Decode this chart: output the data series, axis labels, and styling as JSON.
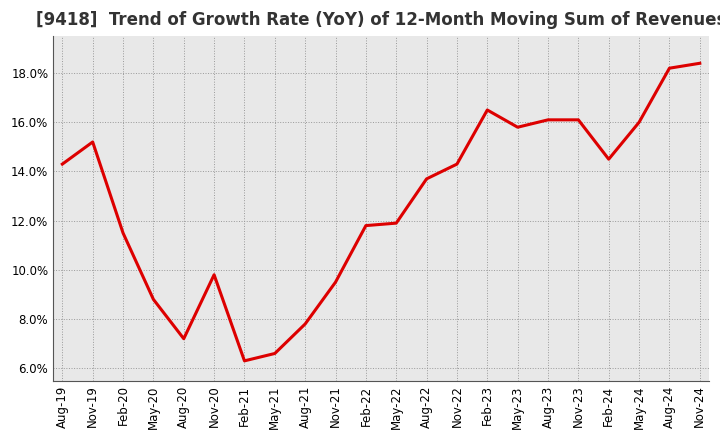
{
  "title": "[9418]  Trend of Growth Rate (YoY) of 12-Month Moving Sum of Revenues",
  "line_color": "#dd0000",
  "bg_color": "#ffffff",
  "plot_bg_color": "#e8e8e8",
  "grid_color": "#999999",
  "x_labels": [
    "Aug-19",
    "Nov-19",
    "Feb-20",
    "May-20",
    "Aug-20",
    "Nov-20",
    "Feb-21",
    "May-21",
    "Aug-21",
    "Nov-21",
    "Feb-22",
    "May-22",
    "Aug-22",
    "Nov-22",
    "Feb-23",
    "May-23",
    "Aug-23",
    "Nov-23",
    "Feb-24",
    "May-24",
    "Aug-24",
    "Nov-24"
  ],
  "y_values": [
    14.3,
    15.2,
    11.5,
    8.8,
    7.2,
    9.8,
    6.3,
    6.6,
    7.8,
    9.5,
    11.8,
    11.9,
    13.7,
    14.3,
    16.5,
    15.8,
    16.1,
    16.1,
    14.5,
    16.0,
    18.2,
    18.4
  ],
  "ylim": [
    5.5,
    19.5
  ],
  "yticks": [
    6.0,
    8.0,
    10.0,
    12.0,
    14.0,
    16.0,
    18.0
  ],
  "title_fontsize": 12,
  "tick_fontsize": 8.5,
  "line_width": 2.2
}
